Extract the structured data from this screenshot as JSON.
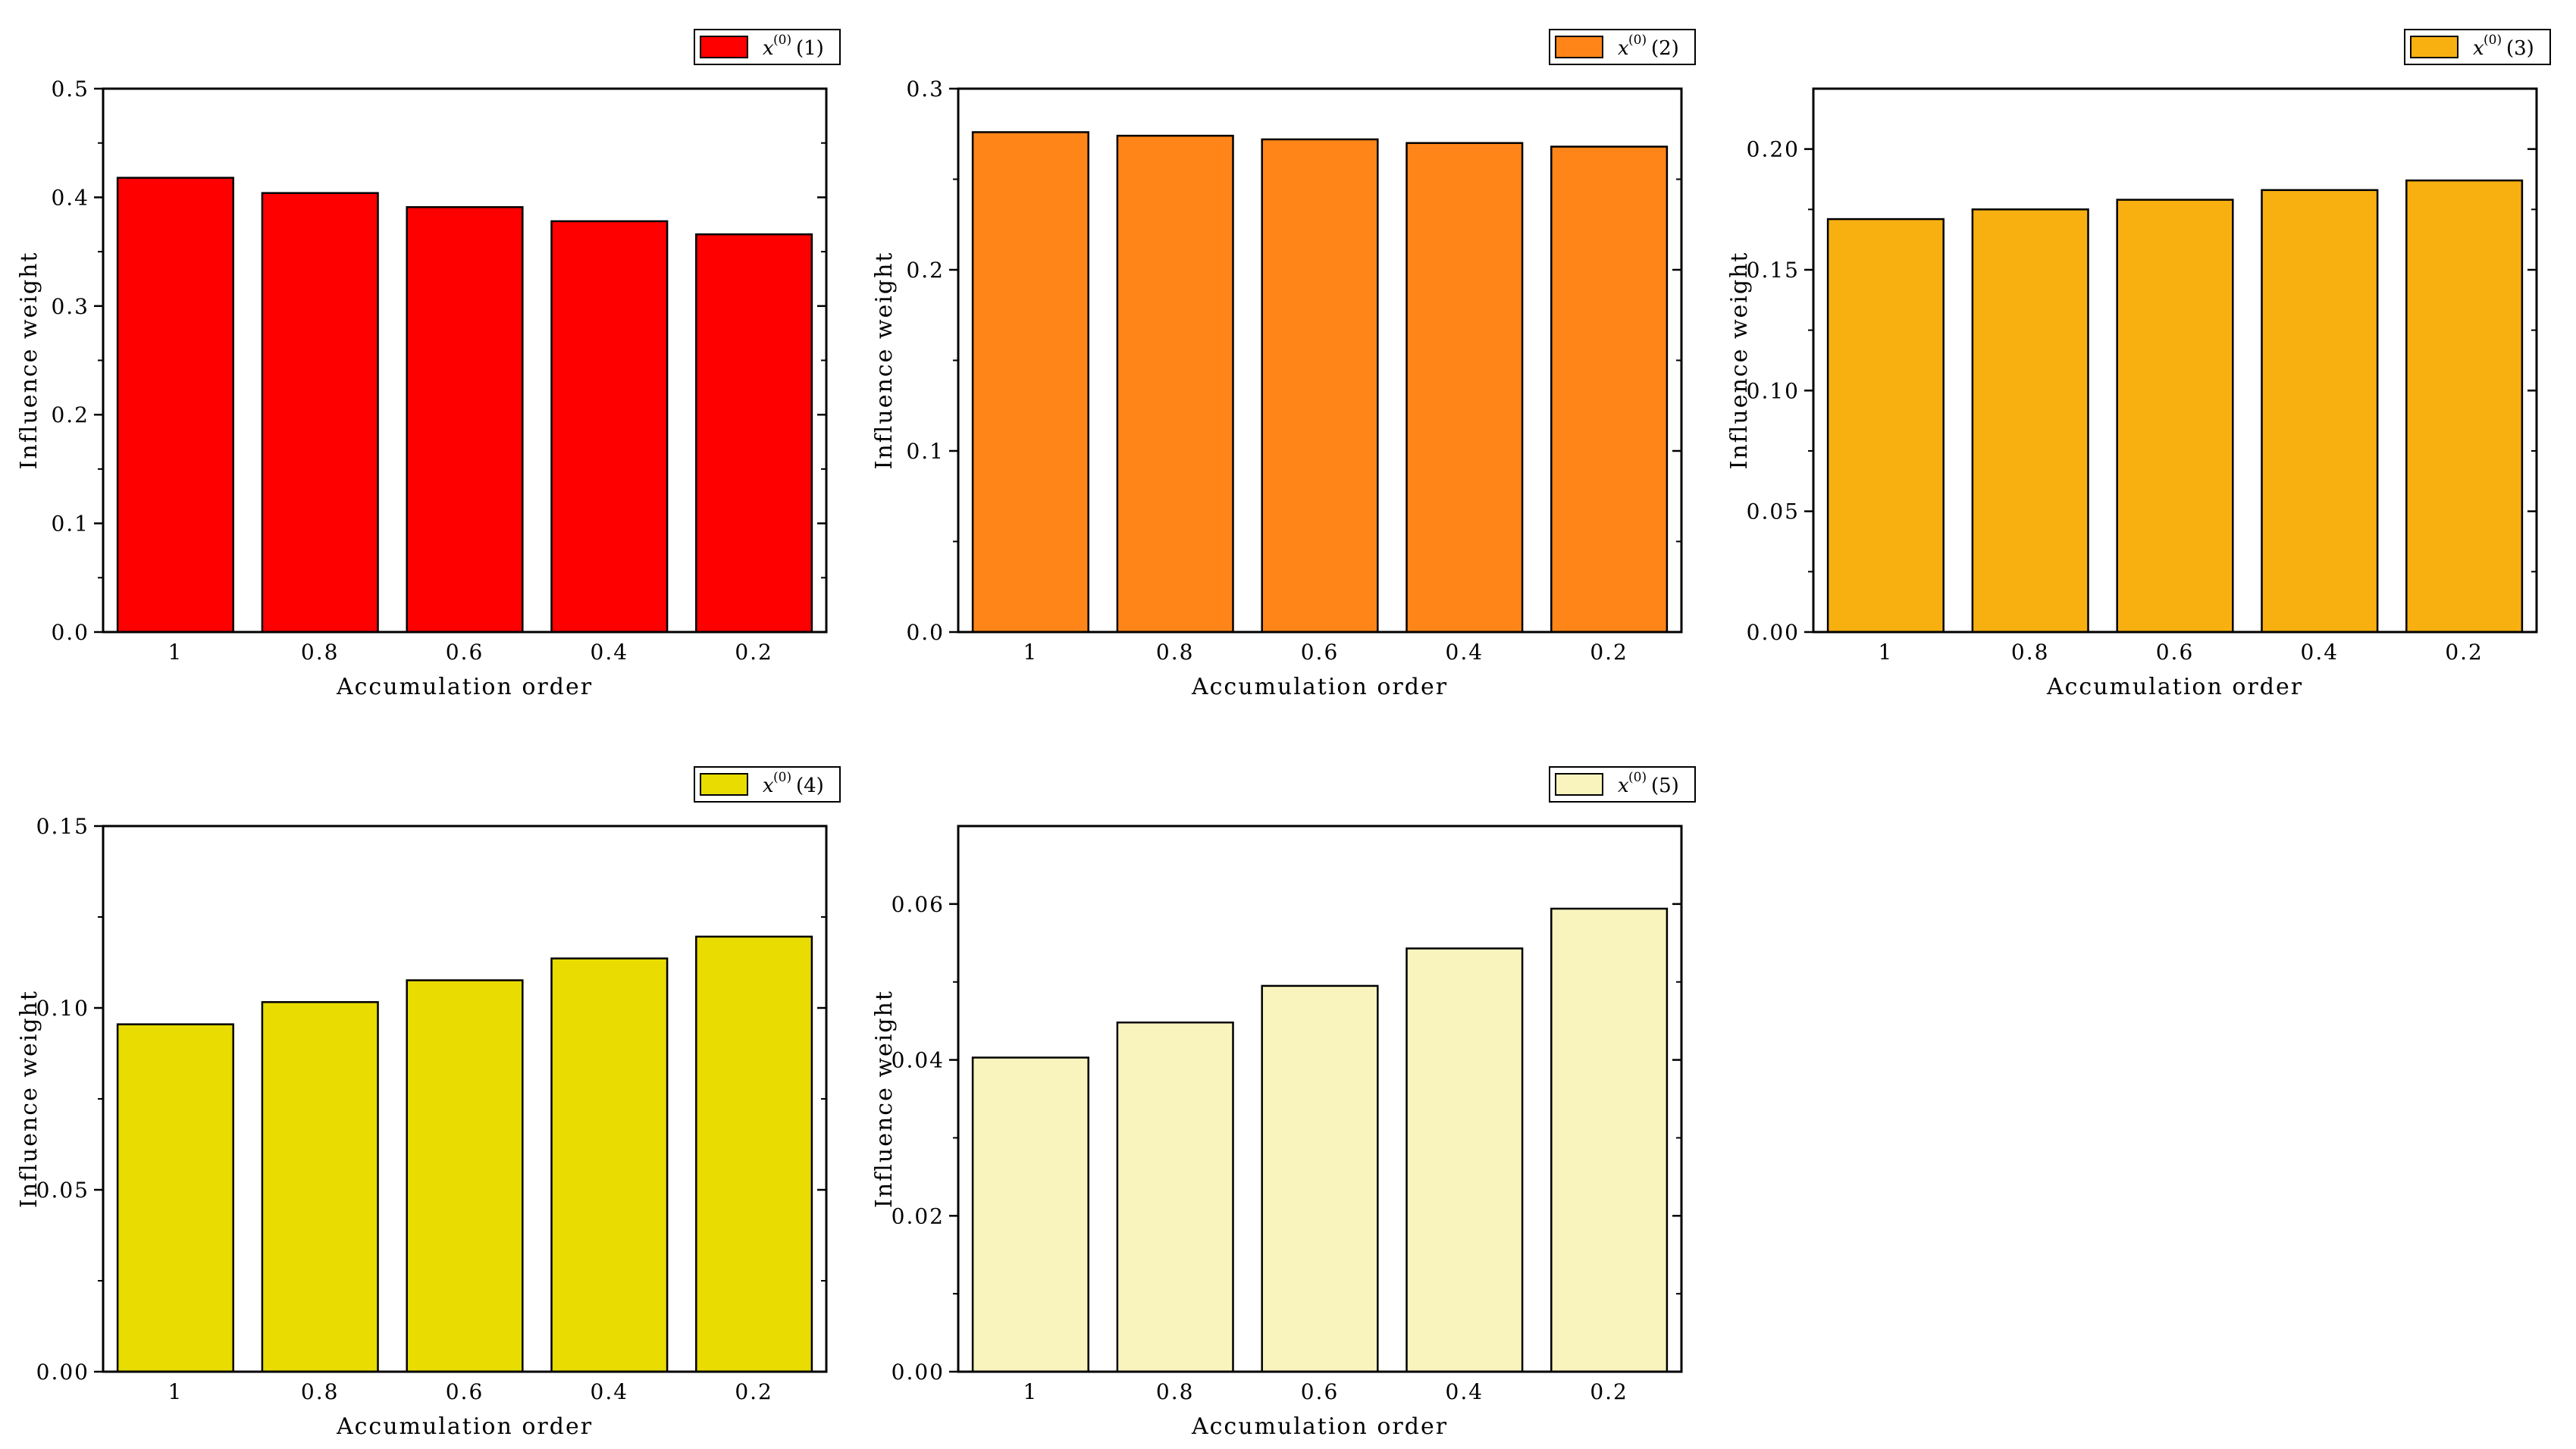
{
  "chart_data": [
    {
      "type": "bar",
      "name": "panel-1",
      "legend": {
        "symbol": "x",
        "superscript": "(0)",
        "index": "(1)"
      },
      "color": "#ff0000",
      "categories": [
        "1",
        "0.8",
        "0.6",
        "0.4",
        "0.2"
      ],
      "values": [
        0.418,
        0.404,
        0.391,
        0.378,
        0.366
      ],
      "ylim": [
        0,
        0.5
      ],
      "yticks": [
        0.0,
        0.1,
        0.2,
        0.3,
        0.4,
        0.5
      ],
      "ytick_labels": [
        "0.0",
        "0.1",
        "0.2",
        "0.3",
        "0.4",
        "0.5"
      ],
      "xlabel": "Accumulation order",
      "ylabel": "Influence weight"
    },
    {
      "type": "bar",
      "name": "panel-2",
      "legend": {
        "symbol": "x",
        "superscript": "(0)",
        "index": "(2)"
      },
      "color": "#ff8519",
      "categories": [
        "1",
        "0.8",
        "0.6",
        "0.4",
        "0.2"
      ],
      "values": [
        0.276,
        0.274,
        0.272,
        0.27,
        0.268
      ],
      "ylim": [
        0,
        0.3
      ],
      "yticks": [
        0.0,
        0.1,
        0.2,
        0.3
      ],
      "ytick_labels": [
        "0.0",
        "0.1",
        "0.2",
        "0.3"
      ],
      "xlabel": "Accumulation order",
      "ylabel": "Influence weight"
    },
    {
      "type": "bar",
      "name": "panel-3",
      "legend": {
        "symbol": "x",
        "superscript": "(0)",
        "index": "(3)"
      },
      "color": "#f8b011",
      "categories": [
        "1",
        "0.8",
        "0.6",
        "0.4",
        "0.2"
      ],
      "values": [
        0.171,
        0.175,
        0.179,
        0.183,
        0.187
      ],
      "ylim": [
        0,
        0.225
      ],
      "yticks": [
        0.0,
        0.05,
        0.1,
        0.15,
        0.2
      ],
      "ytick_labels": [
        "0.00",
        "0.05",
        "0.10",
        "0.15",
        "0.20"
      ],
      "xlabel": "Accumulation order",
      "ylabel": "Influence weight"
    },
    {
      "type": "bar",
      "name": "panel-4",
      "legend": {
        "symbol": "x",
        "superscript": "(0)",
        "index": "(4)"
      },
      "color": "#e8dc00",
      "categories": [
        "1",
        "0.8",
        "0.6",
        "0.4",
        "0.2"
      ],
      "values": [
        0.0955,
        0.1016,
        0.1076,
        0.1136,
        0.1196
      ],
      "ylim": [
        0,
        0.15
      ],
      "yticks": [
        0.0,
        0.05,
        0.1,
        0.15
      ],
      "ytick_labels": [
        "0.00",
        "0.05",
        "0.10",
        "0.15"
      ],
      "xlabel": "Accumulation order",
      "ylabel": "Influence weight"
    },
    {
      "type": "bar",
      "name": "panel-5",
      "legend": {
        "symbol": "x",
        "superscript": "(0)",
        "index": "(5)"
      },
      "color": "#f9f4bd",
      "categories": [
        "1",
        "0.8",
        "0.6",
        "0.4",
        "0.2"
      ],
      "values": [
        0.0403,
        0.0448,
        0.0495,
        0.0543,
        0.0594
      ],
      "ylim": [
        0,
        0.07
      ],
      "yticks": [
        0.0,
        0.02,
        0.04,
        0.06
      ],
      "ytick_labels": [
        "0.00",
        "0.02",
        "0.04",
        "0.06"
      ],
      "xlabel": "Accumulation order",
      "ylabel": "Influence weight"
    }
  ]
}
